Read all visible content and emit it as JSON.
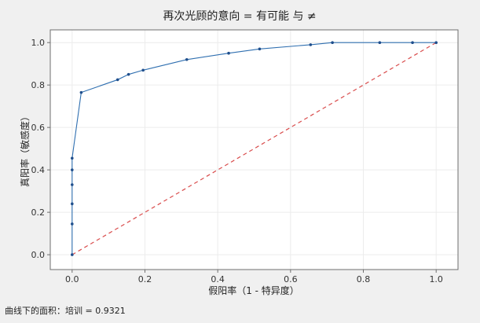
{
  "chart_data": {
    "type": "line",
    "title": "再次光顾的意向 = 有可能 与 ≠",
    "xlabel": "假阳率（1 - 特异度）",
    "ylabel": "真阳率（敏感度）",
    "xlim": [
      -0.06,
      1.06
    ],
    "ylim": [
      -0.07,
      1.06
    ],
    "x_ticks": [
      0.0,
      0.2,
      0.4,
      0.6,
      0.8,
      1.0
    ],
    "y_ticks": [
      0.0,
      0.2,
      0.4,
      0.6,
      0.8,
      1.0
    ],
    "x_tick_labels": [
      "0.0",
      "0.2",
      "0.4",
      "0.6",
      "0.8",
      "1.0"
    ],
    "y_tick_labels": [
      "0.0",
      "0.2",
      "0.4",
      "0.6",
      "0.8",
      "1.0"
    ],
    "grid": true,
    "series": [
      {
        "color": "#2f6fb0",
        "x": [
          0.0,
          0.0,
          0.0,
          0.0,
          0.0,
          0.0,
          0.025,
          0.125,
          0.155,
          0.195,
          0.315,
          0.43,
          0.515,
          0.655,
          0.715,
          0.845,
          0.935,
          1.0
        ],
        "y": [
          0.0,
          0.145,
          0.24,
          0.33,
          0.4,
          0.455,
          0.765,
          0.825,
          0.85,
          0.87,
          0.92,
          0.95,
          0.97,
          0.99,
          1.0,
          1.0,
          1.0,
          1.0
        ]
      },
      {
        "color": "#d94c4c",
        "style": "dashed",
        "x": [
          0.0,
          1.0
        ],
        "y": [
          0.0,
          1.0
        ]
      }
    ],
    "footnote": "曲线下的面积：培训 = 0.9321"
  }
}
